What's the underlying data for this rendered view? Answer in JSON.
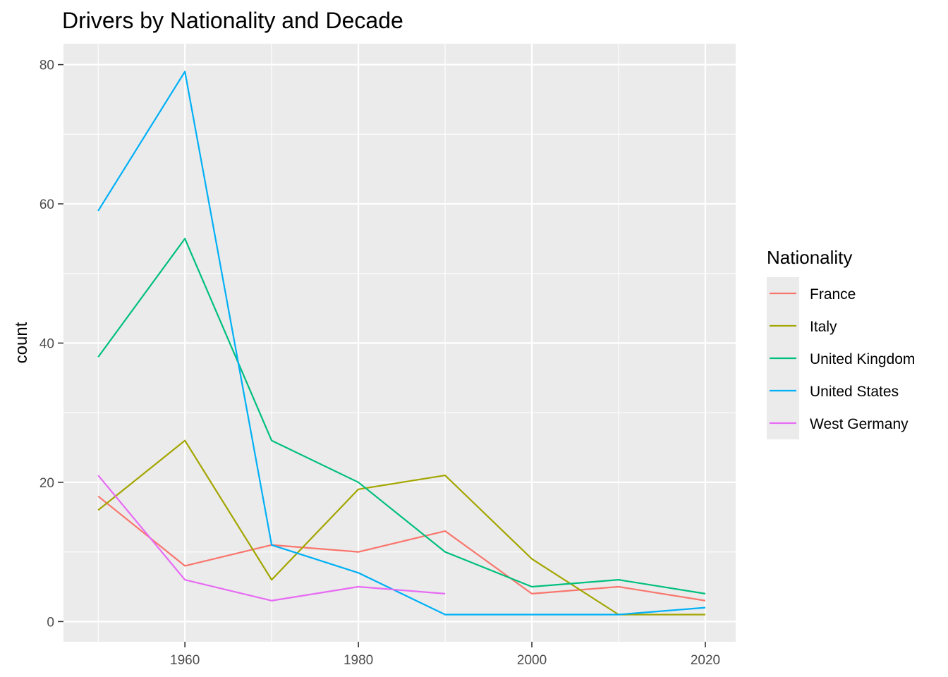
{
  "chart_data": {
    "type": "line",
    "title": "Drivers by Nationality and Decade",
    "xlabel": "",
    "ylabel": "count",
    "x_ticks": [
      1960,
      1980,
      2000,
      2020
    ],
    "y_ticks": [
      0,
      20,
      40,
      60,
      80
    ],
    "xlim": [
      1946,
      2023.5
    ],
    "ylim": [
      -2.9,
      83
    ],
    "grid": true,
    "legend": {
      "title": "Nationality",
      "position": "right"
    },
    "series": [
      {
        "name": "France",
        "color": "#F8766D",
        "points": [
          [
            1950,
            18
          ],
          [
            1960,
            8
          ],
          [
            1970,
            11
          ],
          [
            1980,
            10
          ],
          [
            1990,
            13
          ],
          [
            2000,
            4
          ],
          [
            2010,
            5
          ],
          [
            2020,
            3
          ]
        ]
      },
      {
        "name": "Italy",
        "color": "#A3A500",
        "points": [
          [
            1950,
            16
          ],
          [
            1960,
            26
          ],
          [
            1970,
            6
          ],
          [
            1980,
            19
          ],
          [
            1990,
            21
          ],
          [
            2000,
            9
          ],
          [
            2010,
            1
          ],
          [
            2020,
            1
          ]
        ]
      },
      {
        "name": "United Kingdom",
        "color": "#00BF7D",
        "points": [
          [
            1950,
            38
          ],
          [
            1960,
            55
          ],
          [
            1970,
            26
          ],
          [
            1980,
            20
          ],
          [
            1990,
            10
          ],
          [
            2000,
            5
          ],
          [
            2010,
            6
          ],
          [
            2020,
            4
          ]
        ]
      },
      {
        "name": "United States",
        "color": "#00B0F6",
        "points": [
          [
            1950,
            59
          ],
          [
            1960,
            79
          ],
          [
            1970,
            11
          ],
          [
            1980,
            7
          ],
          [
            1990,
            1
          ],
          [
            2000,
            1
          ],
          [
            2010,
            1
          ],
          [
            2020,
            2
          ]
        ]
      },
      {
        "name": "West Germany",
        "color": "#E76BF3",
        "points": [
          [
            1950,
            21
          ],
          [
            1960,
            6
          ],
          [
            1970,
            3
          ],
          [
            1980,
            5
          ],
          [
            1990,
            4
          ]
        ]
      }
    ]
  }
}
